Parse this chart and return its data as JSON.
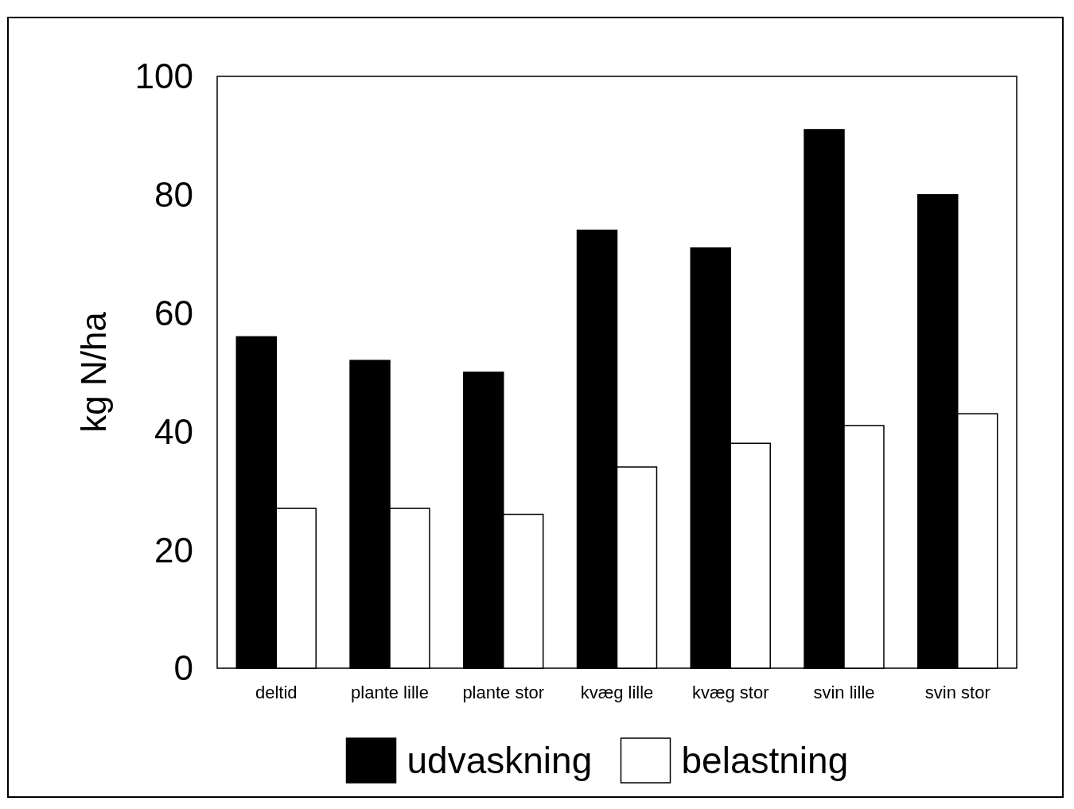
{
  "chart_data": {
    "type": "bar",
    "ylabel": "kg N/ha",
    "categories": [
      "deltid",
      "plante lille",
      "plante stor",
      "kvæg lille",
      "kvæg stor",
      "svin lille",
      "svin stor"
    ],
    "series": [
      {
        "name": "udvaskning",
        "color": "#000000",
        "values": [
          56,
          52,
          50,
          74,
          71,
          91,
          80
        ]
      },
      {
        "name": "belastning",
        "color": "#ffffff",
        "values": [
          27,
          27,
          26,
          34,
          38,
          41,
          43
        ]
      }
    ],
    "ylim": [
      0,
      100
    ],
    "yticks": [
      0,
      20,
      40,
      60,
      80,
      100
    ],
    "grid": false,
    "legend": "bottom"
  }
}
